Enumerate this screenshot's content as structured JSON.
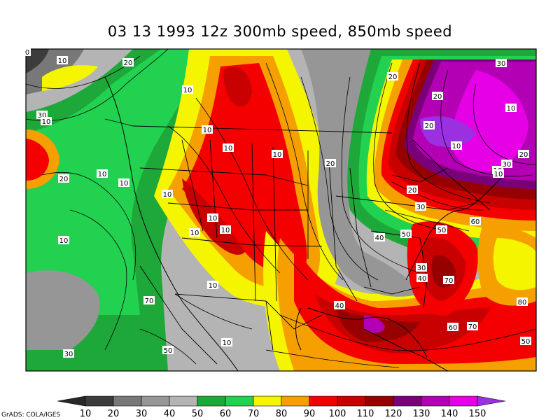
{
  "title": "03 13 1993 12z 300mb speed, 850mb speed",
  "credit": "GrADS: COLA/IGES",
  "colorbar": {
    "levels": [
      {
        "label": "10",
        "color": "#3c3c3c"
      },
      {
        "label": "20",
        "color": "#5a5a5a"
      },
      {
        "label": "30",
        "color": "#787878"
      },
      {
        "label": "40",
        "color": "#969696"
      },
      {
        "label": "50",
        "color": "#b4b4b4"
      },
      {
        "label": "60",
        "color": "#1fa83a"
      },
      {
        "label": "70",
        "color": "#21d14f"
      },
      {
        "label": "80",
        "color": "#f5f500"
      },
      {
        "label": "90",
        "color": "#f5a000"
      },
      {
        "label": "100",
        "color": "#f50000"
      },
      {
        "label": "110",
        "color": "#c80000"
      },
      {
        "label": "120",
        "color": "#960000"
      },
      {
        "label": "130",
        "color": "#7a007a"
      },
      {
        "label": "140",
        "color": "#b400b4"
      },
      {
        "label": "150",
        "color": "#e600e6"
      }
    ],
    "low_color": "#282828",
    "high_color": "#9b30e0"
  },
  "contour_labels": [
    "0",
    "10",
    "20",
    "20",
    "10",
    "30",
    "30",
    "10",
    "20",
    "10",
    "10",
    "10",
    "20",
    "20",
    "10",
    "20",
    "10",
    "10",
    "10",
    "10",
    "20",
    "10",
    "10",
    "30",
    "40",
    "50",
    "50",
    "60",
    "30",
    "40",
    "70",
    "10",
    "40",
    "10",
    "10",
    "10",
    "10",
    "60",
    "70",
    "80",
    "50",
    "20",
    "30",
    "70",
    "50",
    "30",
    "10"
  ]
}
